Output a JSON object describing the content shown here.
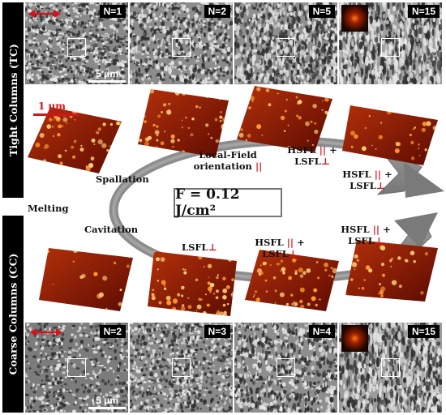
{
  "side_labels": {
    "top": "Tight Columns (TC)",
    "bottom": "Coarse Columns (CC)"
  },
  "top_row": {
    "panels": [
      {
        "n": "N=1",
        "tone": "#8a8a8a"
      },
      {
        "n": "N=2",
        "tone": "#8c8c8c"
      },
      {
        "n": "N=5",
        "tone": "#8f8f8f"
      },
      {
        "n": "N=15",
        "tone": "#a0a0a0"
      }
    ],
    "scale_label": "5 μm"
  },
  "bottom_row": {
    "panels": [
      {
        "n": "N=2",
        "tone": "#7c7c7c"
      },
      {
        "n": "N=3",
        "tone": "#8a8a8a"
      },
      {
        "n": "N=4",
        "tone": "#8e8e8e"
      },
      {
        "n": "N=15",
        "tone": "#9c9c9c"
      }
    ],
    "scale_label": "5 μm"
  },
  "afm_scale": "1 μm",
  "fluence": "F = 0.12 J/cm²",
  "labels": {
    "spallation": "Spallation",
    "local_field_1": "Local-Field",
    "local_field_2": "orientation",
    "parallel": "||",
    "perp": "⊥",
    "hsfl": "HSFL",
    "lsfl": "LSFL",
    "plus": "+",
    "melting": "Melting",
    "cavitation": "Cavitation"
  },
  "colors": {
    "accent_red": "#d4141c",
    "afm_dark": "#5a0a02",
    "afm_light": "#ff9a30",
    "arrow_grey": "#8a8a8a"
  }
}
